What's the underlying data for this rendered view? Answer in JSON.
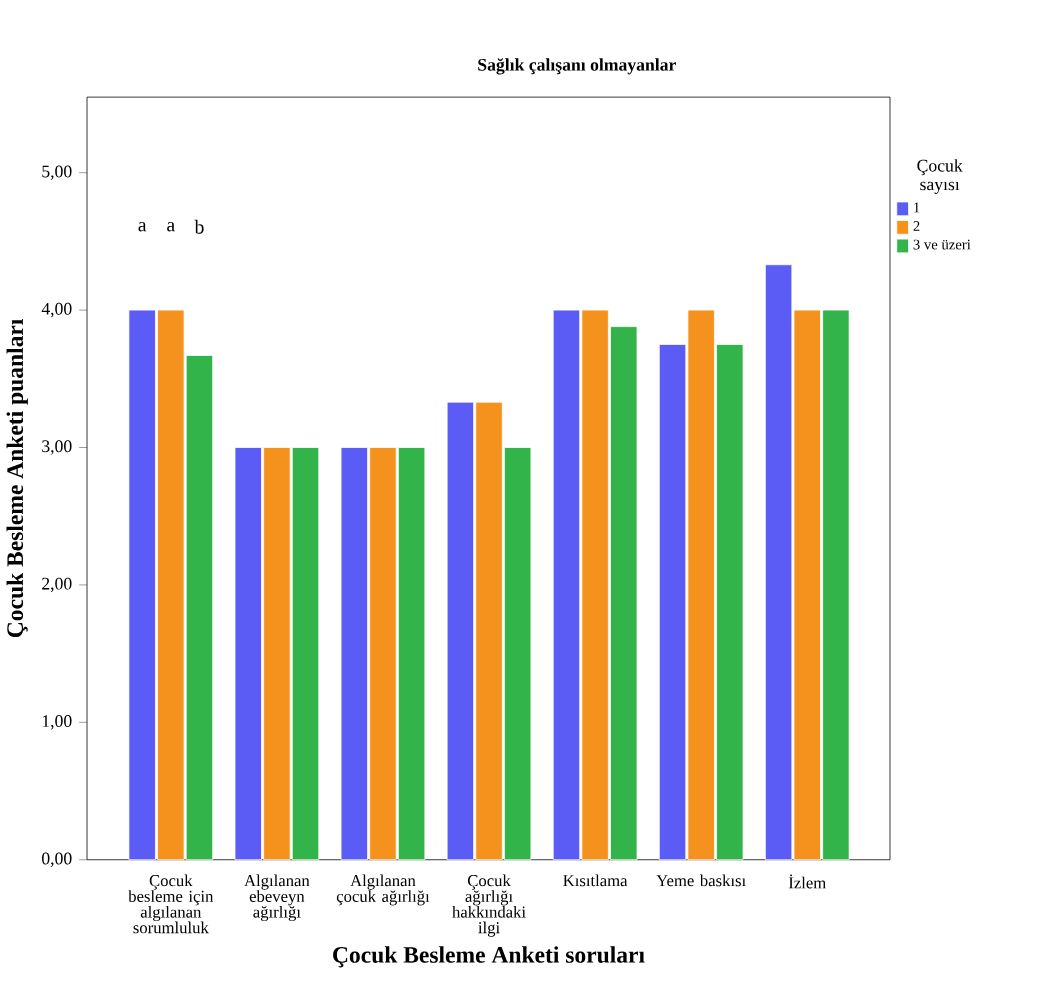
{
  "chart_data": {
    "type": "bar",
    "title": "Sağlık çalışanı olmayanlar",
    "xlabel": "Çocuk Besleme Anketi soruları",
    "ylabel": "Çocuk Besleme Anketi puanları",
    "legend_title": "Çocuk sayısı",
    "categories": [
      "Çocuk besleme için algılanan sorumluluk",
      "Algılanan ebeveyn ağırlığı",
      "Algılanan çocuk ağırlığı",
      "Çocuk ağırlığı hakkındaki ilgi",
      "Kısıtlama",
      "Yeme baskısı",
      "İzlem"
    ],
    "series": [
      {
        "name": "1",
        "color": "#5b5bf5",
        "values": [
          4.0,
          3.0,
          3.0,
          3.33,
          4.0,
          3.75,
          4.33
        ]
      },
      {
        "name": "2",
        "color": "#f5921e",
        "values": [
          4.0,
          3.0,
          3.0,
          3.33,
          4.0,
          4.0,
          4.0
        ]
      },
      {
        "name": "3 ve üzeri",
        "color": "#33b44a",
        "values": [
          3.67,
          3.0,
          3.0,
          3.0,
          3.88,
          3.75,
          4.0
        ]
      }
    ],
    "ylim": [
      0,
      5.55
    ],
    "yticks": [
      {
        "value": 0,
        "label": "0,00"
      },
      {
        "value": 1,
        "label": "1,00"
      },
      {
        "value": 2,
        "label": "2,00"
      },
      {
        "value": 3,
        "label": "3,00"
      },
      {
        "value": 4,
        "label": "4,00"
      },
      {
        "value": 5,
        "label": "5,00"
      }
    ],
    "annotations": [
      "a",
      "a",
      "b"
    ],
    "grid": false,
    "legend": "right"
  }
}
